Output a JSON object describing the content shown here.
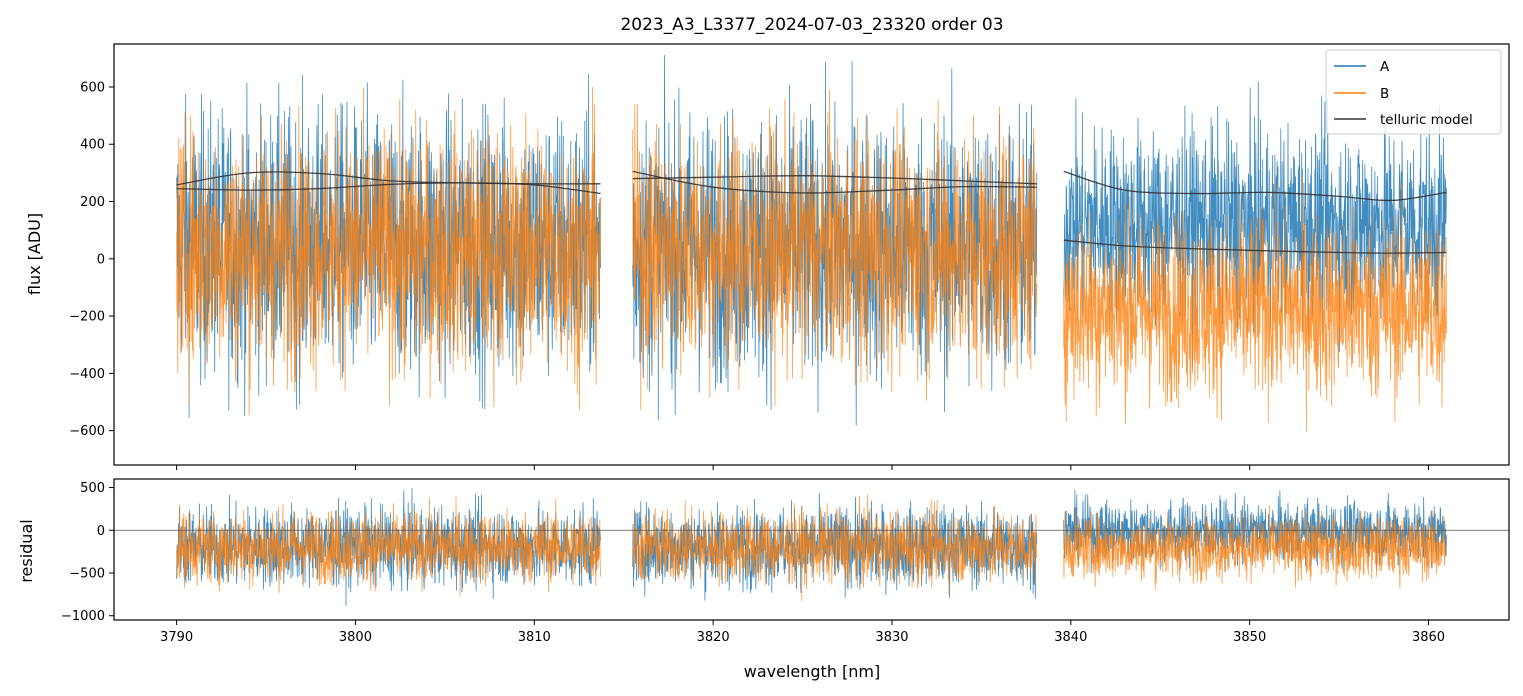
{
  "chart_data": [
    {
      "type": "line",
      "panel": "flux",
      "title": "2023_A3_L3377_2024-07-03_23320  order 03",
      "xlabel": "",
      "ylabel": "flux [ADU]",
      "xlim": [
        3786.5,
        3864.5
      ],
      "ylim": [
        -720,
        750
      ],
      "xticks": [
        3790,
        3800,
        3810,
        3820,
        3830,
        3840,
        3850,
        3860
      ],
      "yticks": [
        -600,
        -400,
        -200,
        0,
        200,
        400,
        600
      ],
      "ytick_labels": [
        "−600",
        "−400",
        "−200",
        "0",
        "200",
        "400",
        "600"
      ],
      "legend": {
        "position": "top-right",
        "entries": [
          "A",
          "B",
          "telluric model"
        ]
      },
      "segments": [
        {
          "x": [
            3790.0,
            3813.7
          ],
          "A_mean": 50,
          "A_spread": 330,
          "B_mean": 30,
          "B_spread": 300
        },
        {
          "x": [
            3815.5,
            3838.1
          ],
          "A_mean": 40,
          "A_spread": 330,
          "B_mean": 30,
          "B_spread": 300
        },
        {
          "x": [
            3839.6,
            3861.0
          ],
          "A_mean": 120,
          "A_spread": 240,
          "B_mean": -170,
          "B_spread": 230
        }
      ],
      "series": [
        {
          "name": "A",
          "color": "#1f77b4"
        },
        {
          "name": "B",
          "color": "#ff7f0e"
        },
        {
          "name": "telluric model",
          "color": "#333333",
          "curves": [
            {
              "x": [
                3790,
                3794,
                3798,
                3802,
                3806,
                3810,
                3813.7
              ],
              "y": [
                245,
                240,
                245,
                260,
                265,
                258,
                228
              ]
            },
            {
              "x": [
                3790,
                3794,
                3798,
                3802,
                3806,
                3810,
                3813.7
              ],
              "y": [
                258,
                300,
                298,
                272,
                265,
                262,
                262
              ]
            },
            {
              "x": [
                3815.5,
                3820,
                3825,
                3830,
                3834,
                3838.1
              ],
              "y": [
                305,
                250,
                230,
                240,
                252,
                250
              ]
            },
            {
              "x": [
                3815.5,
                3820,
                3825,
                3830,
                3834,
                3838.1
              ],
              "y": [
                280,
                285,
                290,
                282,
                272,
                262
              ]
            },
            {
              "x": [
                3839.6,
                3843,
                3847,
                3851,
                3855,
                3858,
                3861.0
              ],
              "y": [
                305,
                240,
                228,
                232,
                218,
                204,
                232
              ]
            },
            {
              "x": [
                3839.6,
                3843,
                3847,
                3851,
                3855,
                3858,
                3861.0
              ],
              "y": [
                65,
                45,
                35,
                28,
                22,
                20,
                22
              ]
            }
          ]
        }
      ]
    },
    {
      "type": "line",
      "panel": "residual",
      "xlabel": "wavelength [nm]",
      "ylabel": "residual",
      "xlim": [
        3786.5,
        3864.5
      ],
      "ylim": [
        -1050,
        600
      ],
      "xticks": [
        3790,
        3800,
        3810,
        3820,
        3830,
        3840,
        3850,
        3860
      ],
      "xtick_labels": [
        "3790",
        "3800",
        "3810",
        "3820",
        "3830",
        "3840",
        "3850",
        "3860"
      ],
      "yticks": [
        -1000,
        -500,
        0,
        500
      ],
      "ytick_labels": [
        "−1000",
        "−500",
        "0",
        "500"
      ],
      "zero_line": 0,
      "segments": [
        {
          "x": [
            3790.0,
            3813.7
          ],
          "A_mean": -190,
          "A_spread": 330,
          "B_mean": -200,
          "B_spread": 300
        },
        {
          "x": [
            3815.5,
            3838.1
          ],
          "A_mean": -190,
          "A_spread": 330,
          "B_mean": -200,
          "B_spread": 300
        },
        {
          "x": [
            3839.6,
            3861.0
          ],
          "A_mean": -20,
          "A_spread": 260,
          "B_mean": -200,
          "B_spread": 260
        }
      ],
      "series": [
        {
          "name": "A",
          "color": "#1f77b4"
        },
        {
          "name": "B",
          "color": "#ff7f0e"
        }
      ]
    }
  ]
}
